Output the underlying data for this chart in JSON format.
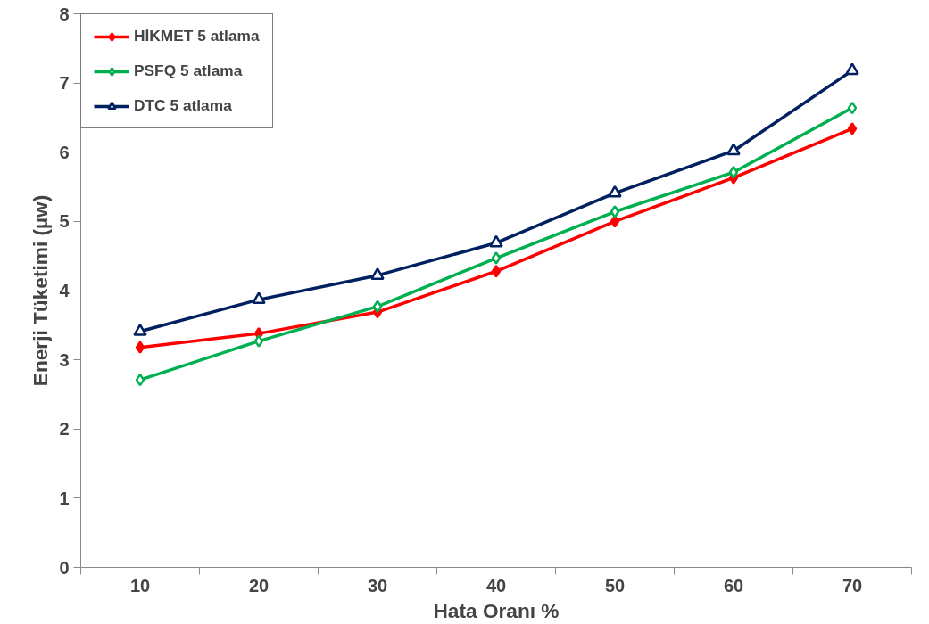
{
  "chart_data": {
    "type": "line",
    "xlabel": "Hata Oranı %",
    "ylabel": "Enerji Tüketimi (µw)",
    "categories": [
      "10",
      "20",
      "30",
      "40",
      "50",
      "60",
      "70"
    ],
    "ylim": [
      0,
      8
    ],
    "yticks": [
      0,
      1,
      2,
      3,
      4,
      5,
      6,
      7,
      8
    ],
    "grid": false,
    "legend": "top left",
    "line_style": "solid",
    "series": [
      {
        "name": "HİKMET 5 atlama",
        "color": "#ff0000",
        "marker": "diamond",
        "values": [
          3.18,
          3.38,
          3.69,
          4.28,
          5.0,
          5.63,
          6.34
        ]
      },
      {
        "name": "PSFQ 5 atlama",
        "color": "#00b050",
        "marker": "diamond",
        "values": [
          2.71,
          3.27,
          3.77,
          4.47,
          5.14,
          5.71,
          6.64
        ]
      },
      {
        "name": "DTC 5 atlama",
        "color": "#002060",
        "marker": "triangle",
        "values": [
          3.41,
          3.87,
          4.22,
          4.69,
          5.41,
          6.02,
          7.18
        ]
      }
    ]
  }
}
